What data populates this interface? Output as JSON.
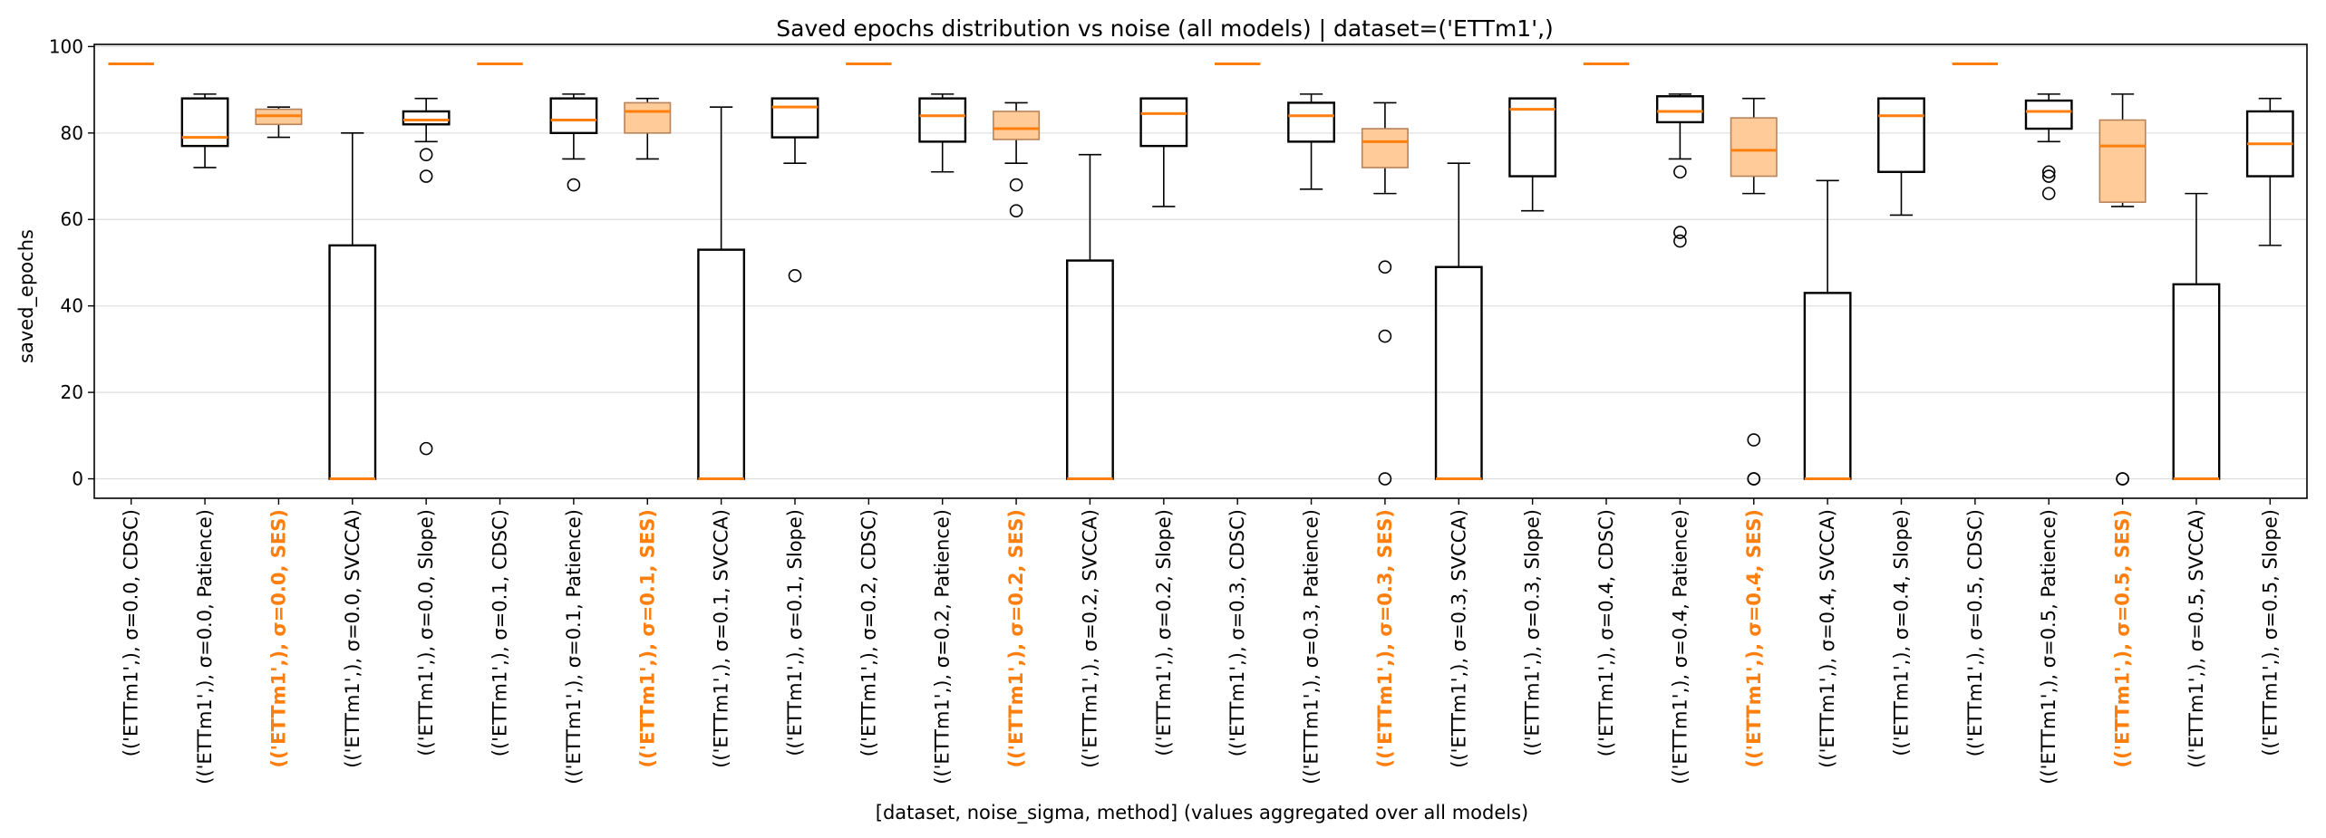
{
  "chart_data": {
    "type": "box",
    "title": "Saved epochs distribution vs noise (all models) | dataset=('ETTm1',)",
    "xlabel": "[dataset, noise_sigma, method] (values aggregated over all models)",
    "ylabel": "saved_epochs",
    "ylim": [
      -4.5,
      100.5
    ],
    "yticks": [
      0,
      20,
      40,
      60,
      80,
      100
    ],
    "grid": "y",
    "highlight_method": "SES",
    "colors": {
      "median": "#ff7f0e",
      "highlight_fill": "#ffcc99",
      "highlight_edge": "#b8835a",
      "box_edge": "#000000",
      "highlight_label": "#ff7f0e"
    },
    "categories": [
      "(('ETTm1',), σ=0.0, CDSC)",
      "(('ETTm1',), σ=0.0, Patience)",
      "(('ETTm1',), σ=0.0, SES)",
      "(('ETTm1',), σ=0.0, SVCCA)",
      "(('ETTm1',), σ=0.0, Slope)",
      "(('ETTm1',), σ=0.1, CDSC)",
      "(('ETTm1',), σ=0.1, Patience)",
      "(('ETTm1',), σ=0.1, SES)",
      "(('ETTm1',), σ=0.1, SVCCA)",
      "(('ETTm1',), σ=0.1, Slope)",
      "(('ETTm1',), σ=0.2, CDSC)",
      "(('ETTm1',), σ=0.2, Patience)",
      "(('ETTm1',), σ=0.2, SES)",
      "(('ETTm1',), σ=0.2, SVCCA)",
      "(('ETTm1',), σ=0.2, Slope)",
      "(('ETTm1',), σ=0.3, CDSC)",
      "(('ETTm1',), σ=0.3, Patience)",
      "(('ETTm1',), σ=0.3, SES)",
      "(('ETTm1',), σ=0.3, SVCCA)",
      "(('ETTm1',), σ=0.3, Slope)",
      "(('ETTm1',), σ=0.4, CDSC)",
      "(('ETTm1',), σ=0.4, Patience)",
      "(('ETTm1',), σ=0.4, SES)",
      "(('ETTm1',), σ=0.4, SVCCA)",
      "(('ETTm1',), σ=0.4, Slope)",
      "(('ETTm1',), σ=0.5, CDSC)",
      "(('ETTm1',), σ=0.5, Patience)",
      "(('ETTm1',), σ=0.5, SES)",
      "(('ETTm1',), σ=0.5, SVCCA)",
      "(('ETTm1',), σ=0.5, Slope)"
    ],
    "boxes": [
      {
        "method": "CDSC",
        "whislo": 96,
        "q1": 96,
        "med": 96,
        "q3": 96,
        "whishi": 96,
        "fliers": []
      },
      {
        "method": "Patience",
        "whislo": 72,
        "q1": 77,
        "med": 79,
        "q3": 88,
        "whishi": 89,
        "fliers": []
      },
      {
        "method": "SES",
        "whislo": 79,
        "q1": 82,
        "med": 84,
        "q3": 85.5,
        "whishi": 86,
        "fliers": []
      },
      {
        "method": "SVCCA",
        "whislo": 0,
        "q1": 0,
        "med": 0,
        "q3": 54,
        "whishi": 80,
        "fliers": []
      },
      {
        "method": "Slope",
        "whislo": 78,
        "q1": 82,
        "med": 83,
        "q3": 85,
        "whishi": 88,
        "fliers": [
          75,
          70,
          7
        ]
      },
      {
        "method": "CDSC",
        "whislo": 96,
        "q1": 96,
        "med": 96,
        "q3": 96,
        "whishi": 96,
        "fliers": []
      },
      {
        "method": "Patience",
        "whislo": 74,
        "q1": 80,
        "med": 83,
        "q3": 88,
        "whishi": 89,
        "fliers": [
          68
        ]
      },
      {
        "method": "SES",
        "whislo": 74,
        "q1": 80,
        "med": 85,
        "q3": 87,
        "whishi": 88,
        "fliers": []
      },
      {
        "method": "SVCCA",
        "whislo": 0,
        "q1": 0,
        "med": 0,
        "q3": 53,
        "whishi": 86,
        "fliers": []
      },
      {
        "method": "Slope",
        "whislo": 73,
        "q1": 79,
        "med": 86,
        "q3": 88,
        "whishi": 88,
        "fliers": [
          47
        ]
      },
      {
        "method": "CDSC",
        "whislo": 96,
        "q1": 96,
        "med": 96,
        "q3": 96,
        "whishi": 96,
        "fliers": []
      },
      {
        "method": "Patience",
        "whislo": 71,
        "q1": 78,
        "med": 84,
        "q3": 88,
        "whishi": 89,
        "fliers": []
      },
      {
        "method": "SES",
        "whislo": 73,
        "q1": 78.5,
        "med": 81,
        "q3": 85,
        "whishi": 87,
        "fliers": [
          68,
          62
        ]
      },
      {
        "method": "SVCCA",
        "whislo": 0,
        "q1": 0,
        "med": 0,
        "q3": 50.5,
        "whishi": 75,
        "fliers": []
      },
      {
        "method": "Slope",
        "whislo": 63,
        "q1": 77,
        "med": 84.5,
        "q3": 88,
        "whishi": 88,
        "fliers": []
      },
      {
        "method": "CDSC",
        "whislo": 96,
        "q1": 96,
        "med": 96,
        "q3": 96,
        "whishi": 96,
        "fliers": []
      },
      {
        "method": "Patience",
        "whislo": 67,
        "q1": 78,
        "med": 84,
        "q3": 87,
        "whishi": 89,
        "fliers": []
      },
      {
        "method": "SES",
        "whislo": 66,
        "q1": 72,
        "med": 78,
        "q3": 81,
        "whishi": 87,
        "fliers": [
          49,
          33,
          0
        ]
      },
      {
        "method": "SVCCA",
        "whislo": 0,
        "q1": 0,
        "med": 0,
        "q3": 49,
        "whishi": 73,
        "fliers": []
      },
      {
        "method": "Slope",
        "whislo": 62,
        "q1": 70,
        "med": 85.5,
        "q3": 88,
        "whishi": 88,
        "fliers": []
      },
      {
        "method": "CDSC",
        "whislo": 96,
        "q1": 96,
        "med": 96,
        "q3": 96,
        "whishi": 96,
        "fliers": []
      },
      {
        "method": "Patience",
        "whislo": 74,
        "q1": 82.5,
        "med": 85,
        "q3": 88.5,
        "whishi": 89,
        "fliers": [
          71,
          57,
          55
        ]
      },
      {
        "method": "SES",
        "whislo": 66,
        "q1": 70,
        "med": 76,
        "q3": 83.5,
        "whishi": 88,
        "fliers": [
          9,
          0,
          0
        ]
      },
      {
        "method": "SVCCA",
        "whislo": 0,
        "q1": 0,
        "med": 0,
        "q3": 43,
        "whishi": 69,
        "fliers": []
      },
      {
        "method": "Slope",
        "whislo": 61,
        "q1": 71,
        "med": 84,
        "q3": 88,
        "whishi": 88,
        "fliers": []
      },
      {
        "method": "CDSC",
        "whislo": 96,
        "q1": 96,
        "med": 96,
        "q3": 96,
        "whishi": 96,
        "fliers": []
      },
      {
        "method": "Patience",
        "whislo": 78,
        "q1": 81,
        "med": 85,
        "q3": 87.5,
        "whishi": 89,
        "fliers": [
          71,
          70,
          66
        ]
      },
      {
        "method": "SES",
        "whislo": 63,
        "q1": 64,
        "med": 77,
        "q3": 83,
        "whishi": 89,
        "fliers": [
          0,
          0
        ]
      },
      {
        "method": "SVCCA",
        "whislo": 0,
        "q1": 0,
        "med": 0,
        "q3": 45,
        "whishi": 66,
        "fliers": []
      },
      {
        "method": "Slope",
        "whislo": 54,
        "q1": 70,
        "med": 77.5,
        "q3": 85,
        "whishi": 88,
        "fliers": []
      }
    ]
  }
}
